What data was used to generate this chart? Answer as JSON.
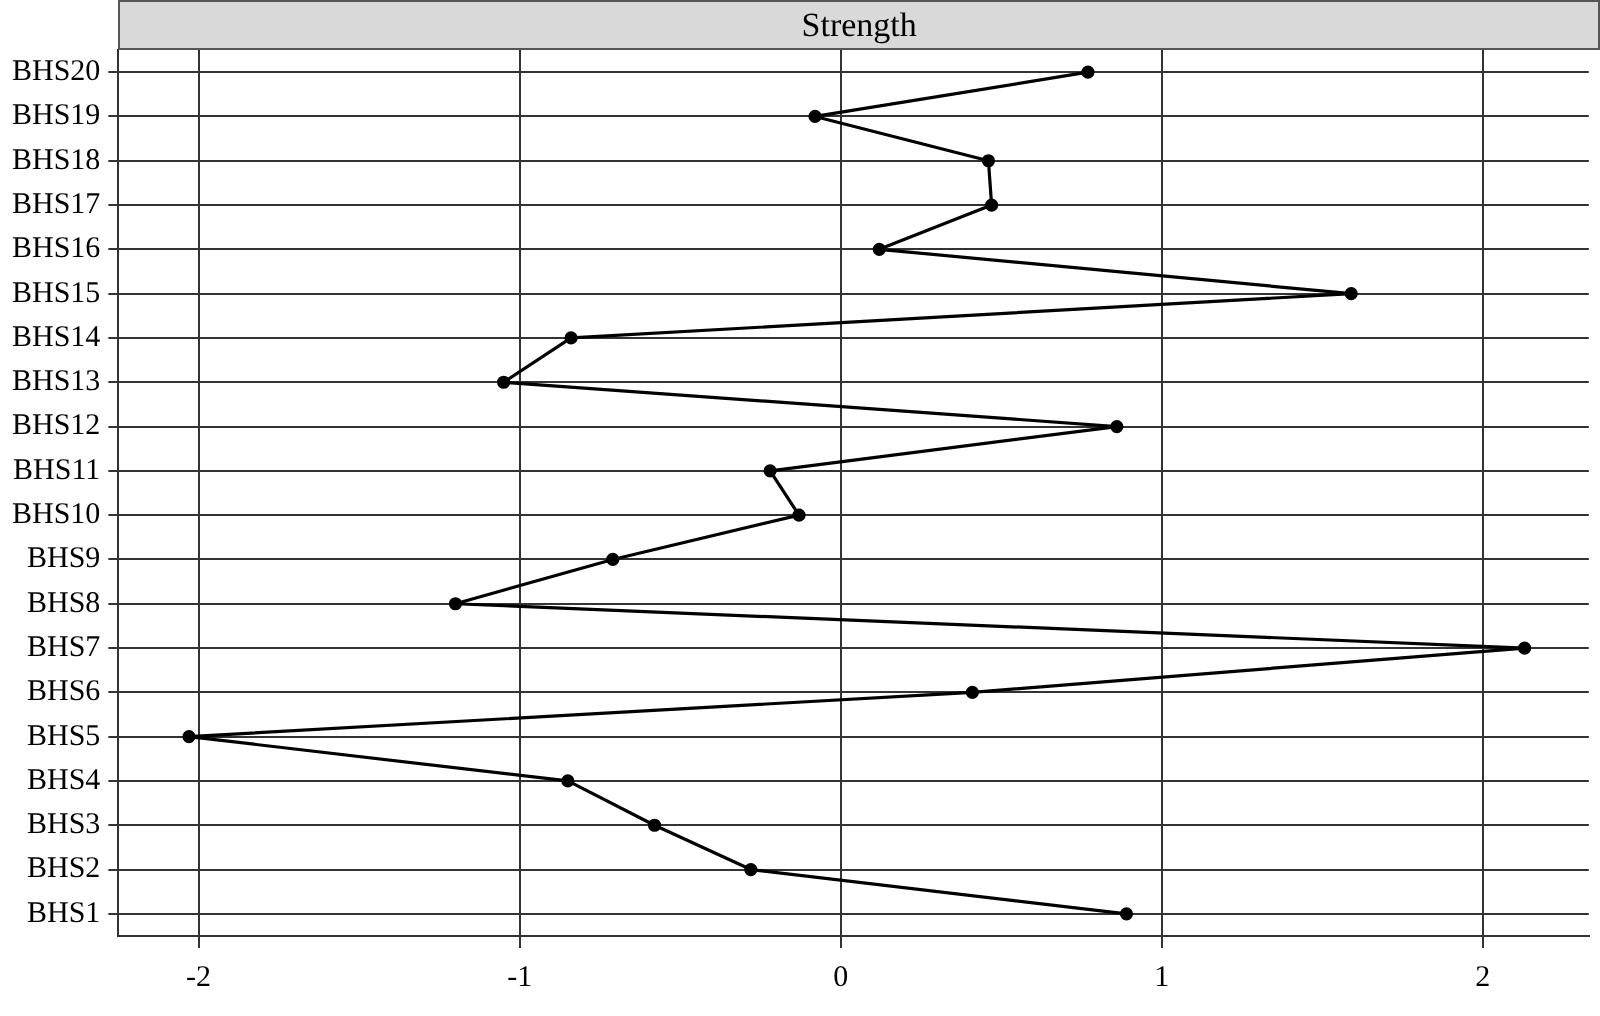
{
  "chart_data": {
    "type": "line",
    "title": "Strength",
    "orientation": "horizontal",
    "categories": [
      "BHS20",
      "BHS19",
      "BHS18",
      "BHS17",
      "BHS16",
      "BHS15",
      "BHS14",
      "BHS13",
      "BHS12",
      "BHS11",
      "BHS10",
      "BHS9",
      "BHS8",
      "BHS7",
      "BHS6",
      "BHS5",
      "BHS4",
      "BHS3",
      "BHS2",
      "BHS1"
    ],
    "series": [
      {
        "color": "#000000",
        "values": [
          0.77,
          -0.08,
          0.46,
          0.47,
          0.12,
          1.59,
          -0.84,
          -1.05,
          0.86,
          -0.22,
          -0.13,
          -0.71,
          -1.2,
          2.13,
          0.41,
          -2.03,
          -0.85,
          -0.58,
          -0.28,
          0.89
        ]
      }
    ],
    "xlim": [
      -2.25,
      2.33
    ],
    "xticks": [
      -2,
      -1,
      0,
      1,
      2
    ],
    "grid": true,
    "legend": false,
    "marker": "circle",
    "line_style": "solid"
  }
}
